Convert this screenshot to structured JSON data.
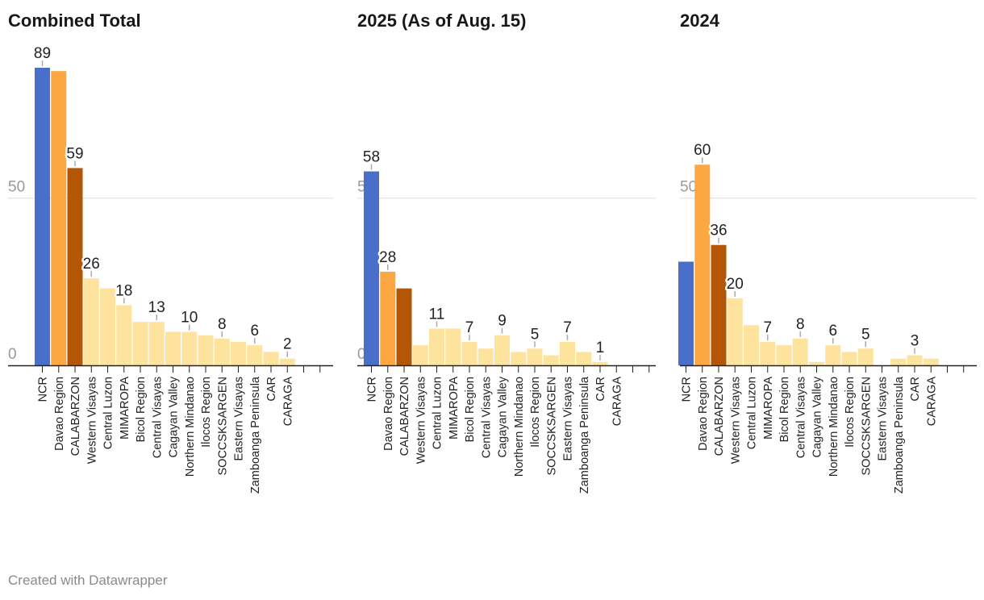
{
  "footer": "Created with Datawrapper",
  "colors": {
    "NCR": "#4a6fcb",
    "Davao Region": "#fda742",
    "CALABARZON": "#b35606",
    "other": "#fde39d",
    "grid": "#dddddd",
    "axis": "#222222"
  },
  "chart_data": [
    {
      "type": "bar",
      "title": "Combined Total",
      "yticks": [
        0,
        50
      ],
      "ylim": [
        0,
        95
      ],
      "categories": [
        "NCR",
        "Davao Region",
        "CALABARZON",
        "Western Visayas",
        "Central Luzon",
        "MIMAROPA",
        "Bicol Region",
        "Central Visayas",
        "Cagayan Valley",
        "Northern Mindanao",
        "Ilocos Region",
        "SOCCSKSARGEN",
        "Eastern Visayas",
        "Zamboanga Peninsula",
        "CAR",
        "CARAGA",
        "",
        ""
      ],
      "values": [
        89,
        88,
        59,
        26,
        23,
        18,
        13,
        13,
        10,
        10,
        9,
        8,
        7,
        6,
        4,
        2,
        null,
        null
      ],
      "labels": [
        "89",
        null,
        "59",
        "26",
        null,
        "18",
        null,
        "13",
        null,
        "10",
        null,
        "8",
        null,
        "6",
        null,
        "2",
        null,
        null
      ]
    },
    {
      "type": "bar",
      "title": "2025 (As of Aug. 15)",
      "yticks": [
        0,
        50
      ],
      "ylim": [
        0,
        95
      ],
      "categories": [
        "NCR",
        "Davao Region",
        "CALABARZON",
        "Western Visayas",
        "Central Luzon",
        "MIMAROPA",
        "Bicol Region",
        "Central Visayas",
        "Cagayan Valley",
        "Northern Mindanao",
        "Ilocos Region",
        "SOCCSKSARGEN",
        "Eastern Visayas",
        "Zamboanga Peninsula",
        "CAR",
        "CARAGA",
        "",
        ""
      ],
      "values": [
        58,
        28,
        23,
        6,
        11,
        11,
        7,
        5,
        9,
        4,
        5,
        3,
        7,
        4,
        1,
        0,
        null,
        null
      ],
      "labels": [
        "58",
        "28",
        null,
        null,
        "11",
        null,
        "7",
        null,
        "9",
        null,
        "5",
        null,
        "7",
        null,
        "1",
        null,
        null,
        null
      ]
    },
    {
      "type": "bar",
      "title": "2024",
      "yticks": [
        0,
        50
      ],
      "ylim": [
        0,
        95
      ],
      "categories": [
        "NCR",
        "Davao Region",
        "CALABARZON",
        "Western Visayas",
        "Central Luzon",
        "MIMAROPA",
        "Bicol Region",
        "Central Visayas",
        "Cagayan Valley",
        "Northern Mindanao",
        "Ilocos Region",
        "SOCCSKSARGEN",
        "Eastern Visayas",
        "Zamboanga Peninsula",
        "CAR",
        "CARAGA",
        "",
        ""
      ],
      "values": [
        31,
        60,
        36,
        20,
        12,
        7,
        6,
        8,
        1,
        6,
        4,
        5,
        0,
        2,
        3,
        2,
        null,
        null
      ],
      "labels": [
        null,
        "60",
        "36",
        "20",
        null,
        "7",
        null,
        "8",
        null,
        "6",
        null,
        "5",
        null,
        null,
        "3",
        null,
        null,
        null
      ]
    }
  ]
}
